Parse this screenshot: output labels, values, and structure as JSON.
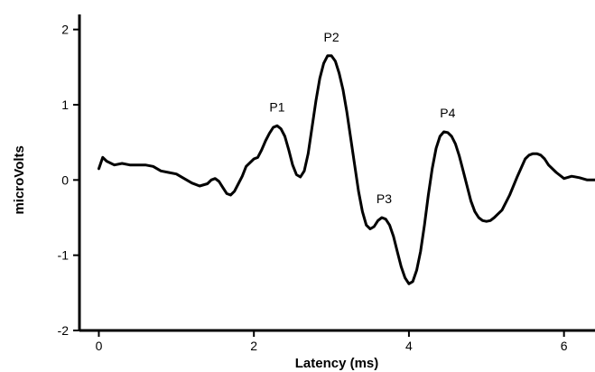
{
  "chart_data": {
    "type": "line",
    "title": "",
    "xlabel": "Latency (ms)",
    "ylabel": "microVolts",
    "xlim": [
      -0.25,
      6.4
    ],
    "ylim": [
      -2,
      2.2
    ],
    "x_ticks": [
      0,
      2,
      4,
      6
    ],
    "x_tick_labels": [
      "0",
      "2",
      "4",
      "6"
    ],
    "y_ticks": [
      -2,
      -1,
      0,
      1,
      2
    ],
    "y_tick_labels": [
      "-2",
      "-1",
      "0",
      "1",
      "2"
    ],
    "grid": false,
    "legend": "none",
    "line_color": "#000000",
    "series": [
      {
        "x": [
          0.0,
          0.05,
          0.1,
          0.2,
          0.3,
          0.4,
          0.5,
          0.6,
          0.7,
          0.8,
          0.9,
          1.0,
          1.1,
          1.2,
          1.3,
          1.4,
          1.45,
          1.5,
          1.55,
          1.6,
          1.65,
          1.7,
          1.75,
          1.8,
          1.85,
          1.9,
          2.0,
          2.05,
          2.1,
          2.15,
          2.2,
          2.25,
          2.3,
          2.35,
          2.4,
          2.45,
          2.5,
          2.55,
          2.6,
          2.65,
          2.7,
          2.75,
          2.8,
          2.85,
          2.9,
          2.95,
          3.0,
          3.05,
          3.1,
          3.15,
          3.2,
          3.25,
          3.3,
          3.35,
          3.4,
          3.45,
          3.5,
          3.55,
          3.6,
          3.65,
          3.7,
          3.75,
          3.8,
          3.85,
          3.9,
          3.95,
          4.0,
          4.05,
          4.1,
          4.15,
          4.2,
          4.25,
          4.3,
          4.35,
          4.4,
          4.45,
          4.5,
          4.55,
          4.6,
          4.65,
          4.7,
          4.75,
          4.8,
          4.85,
          4.9,
          4.95,
          5.0,
          5.05,
          5.1,
          5.15,
          5.2,
          5.3,
          5.4,
          5.5,
          5.55,
          5.6,
          5.65,
          5.7,
          5.75,
          5.8,
          5.9,
          6.0,
          6.1,
          6.2,
          6.3,
          6.4
        ],
        "y": [
          0.15,
          0.3,
          0.25,
          0.2,
          0.22,
          0.2,
          0.2,
          0.2,
          0.18,
          0.12,
          0.1,
          0.08,
          0.02,
          -0.04,
          -0.08,
          -0.05,
          0.0,
          0.02,
          -0.02,
          -0.1,
          -0.18,
          -0.2,
          -0.15,
          -0.05,
          0.05,
          0.18,
          0.28,
          0.3,
          0.4,
          0.52,
          0.62,
          0.7,
          0.72,
          0.68,
          0.58,
          0.4,
          0.2,
          0.07,
          0.04,
          0.12,
          0.35,
          0.7,
          1.05,
          1.35,
          1.55,
          1.65,
          1.65,
          1.58,
          1.42,
          1.2,
          0.9,
          0.55,
          0.2,
          -0.15,
          -0.42,
          -0.6,
          -0.65,
          -0.62,
          -0.54,
          -0.5,
          -0.52,
          -0.6,
          -0.75,
          -0.95,
          -1.15,
          -1.3,
          -1.38,
          -1.35,
          -1.2,
          -0.95,
          -0.6,
          -0.2,
          0.15,
          0.42,
          0.58,
          0.64,
          0.63,
          0.58,
          0.48,
          0.32,
          0.12,
          -0.08,
          -0.28,
          -0.42,
          -0.5,
          -0.54,
          -0.55,
          -0.54,
          -0.5,
          -0.45,
          -0.4,
          -0.2,
          0.05,
          0.28,
          0.33,
          0.35,
          0.35,
          0.33,
          0.28,
          0.2,
          0.1,
          0.02,
          0.05,
          0.03,
          0.0,
          0.0
        ]
      }
    ],
    "annotations": [
      {
        "text": "P1",
        "x": 2.3,
        "y": 0.72
      },
      {
        "text": "P2",
        "x": 3.0,
        "y": 1.65
      },
      {
        "text": "P3",
        "x": 3.68,
        "y": -0.5
      },
      {
        "text": "P4",
        "x": 4.5,
        "y": 0.64
      }
    ]
  }
}
